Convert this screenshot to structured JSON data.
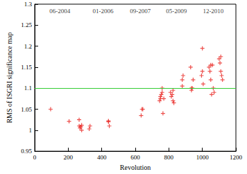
{
  "chart_data": {
    "type": "scatter",
    "x_label": "Revolution",
    "y_label": "RMS of ISGRI significance map",
    "xlim": [
      0,
      1200
    ],
    "xticks": [
      0,
      200,
      400,
      600,
      800,
      1000,
      1200
    ],
    "ylim": [
      0.95,
      1.3
    ],
    "yticks": [
      0.95,
      1,
      1.05,
      1.1,
      1.15,
      1.2,
      1.25,
      1.3
    ],
    "grid": false,
    "marker": "plus",
    "color": "#e8231f",
    "x": [
      95,
      205,
      265,
      265,
      270,
      275,
      280,
      280,
      325,
      330,
      440,
      440,
      445,
      635,
      640,
      645,
      745,
      750,
      750,
      755,
      760,
      760,
      765,
      770,
      810,
      815,
      820,
      825,
      825,
      830,
      880,
      885,
      880,
      930,
      935,
      935,
      940,
      945,
      1000,
      1000,
      995,
      1005,
      1040,
      1045,
      1050,
      1050,
      1055,
      1060,
      1065,
      1070,
      1100,
      1105,
      1110,
      1110,
      1115,
      1120
    ],
    "values": [
      1.05,
      1.021,
      1.025,
      1.01,
      1.005,
      1.008,
      1.012,
      1.0,
      1.003,
      1.01,
      1.022,
      1.02,
      1.01,
      1.035,
      1.05,
      1.05,
      1.07,
      1.08,
      1.075,
      1.085,
      1.1,
      1.09,
      1.04,
      1.075,
      1.09,
      1.08,
      1.085,
      1.095,
      1.07,
      1.065,
      1.12,
      1.13,
      1.105,
      1.15,
      1.1,
      1.095,
      1.1,
      1.12,
      1.195,
      1.14,
      1.13,
      1.11,
      1.15,
      1.14,
      1.12,
      1.155,
      1.085,
      1.155,
      1.1,
      1.09,
      1.17,
      1.16,
      1.175,
      1.14,
      1.13,
      1.12
    ],
    "reference_line": {
      "y": 1.1,
      "color": "#33cc33"
    },
    "annotations": [
      {
        "text": "06-2004",
        "x": 150,
        "y": 1.284
      },
      {
        "text": "01-2006",
        "x": 408,
        "y": 1.284
      },
      {
        "text": "09-2007",
        "x": 630,
        "y": 1.284
      },
      {
        "text": "05-2009",
        "x": 845,
        "y": 1.284
      },
      {
        "text": "12-2010",
        "x": 1065,
        "y": 1.284
      }
    ]
  }
}
